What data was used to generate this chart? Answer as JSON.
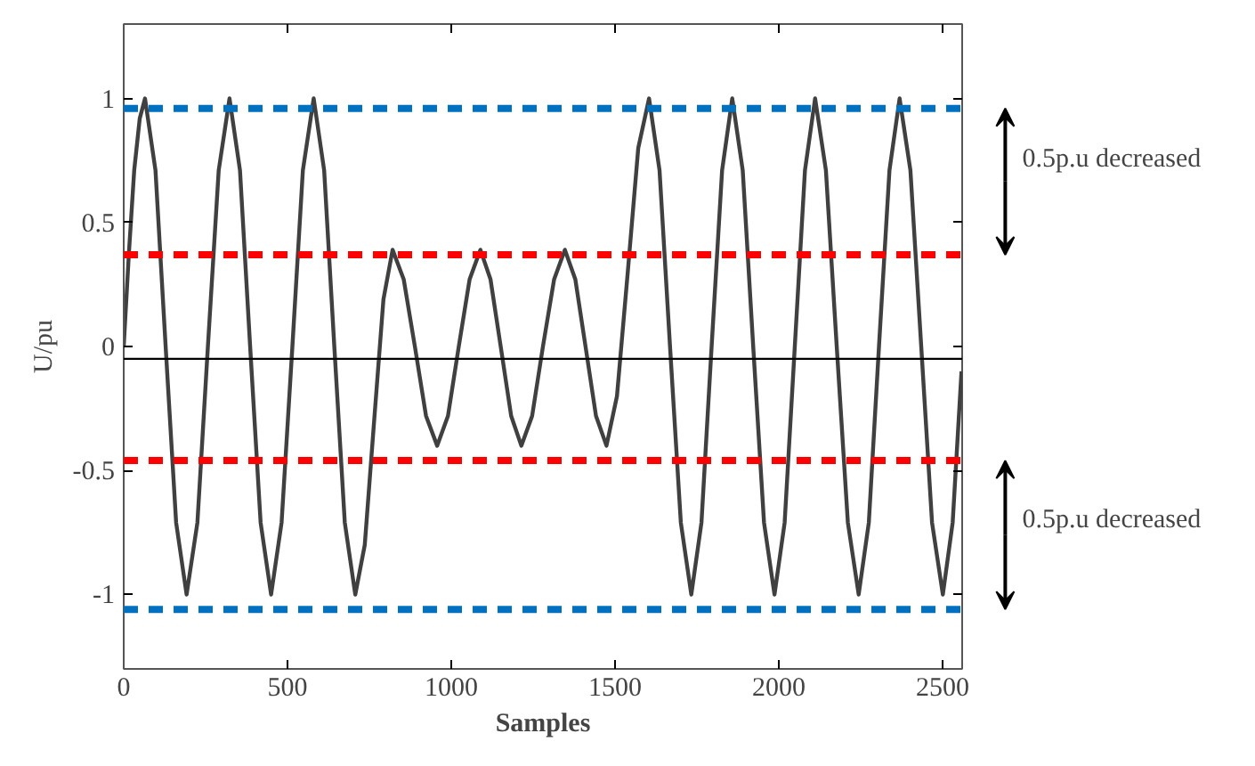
{
  "chart_data": {
    "type": "line",
    "xlabel": "Samples",
    "ylabel": "U/pu",
    "xlim": [
      0,
      2560
    ],
    "ylim": [
      -1.3,
      1.3
    ],
    "xticks": [
      0,
      500,
      1000,
      1500,
      2000,
      2500
    ],
    "yticks": [
      -1,
      -0.5,
      0,
      0.5,
      1
    ],
    "grid": false,
    "marker": "none",
    "line_style": "solid",
    "series": [
      {
        "color": "#404040",
        "x": [
          0,
          16,
          32,
          49,
          65,
          97,
          128,
          160,
          192,
          225,
          257,
          290,
          323,
          355,
          386,
          418,
          450,
          482,
          515,
          547,
          580,
          612,
          643,
          675,
          707,
          736,
          764,
          793,
          821,
          855,
          889,
          923,
          957,
          990,
          1023,
          1056,
          1089,
          1120,
          1151,
          1183,
          1214,
          1247,
          1280,
          1314,
          1347,
          1379,
          1410,
          1442,
          1474,
          1506,
          1539,
          1571,
          1604,
          1636,
          1668,
          1701,
          1733,
          1764,
          1795,
          1827,
          1858,
          1890,
          1922,
          1955,
          1987,
          2018,
          2049,
          2080,
          2111,
          2144,
          2177,
          2211,
          2244,
          2275,
          2306,
          2338,
          2369,
          2402,
          2435,
          2468,
          2501,
          2531,
          2558
        ],
        "values": [
          0,
          0.38,
          0.71,
          0.92,
          1,
          0.71,
          0,
          -0.71,
          -1,
          -0.71,
          0,
          0.71,
          1,
          0.71,
          0,
          -0.71,
          -1,
          -0.71,
          0,
          0.71,
          1,
          0.71,
          0,
          -0.71,
          -1,
          -0.8,
          -0.31,
          0.19,
          0.39,
          0.27,
          0,
          -0.28,
          -0.4,
          -0.28,
          0,
          0.27,
          0.39,
          0.27,
          0,
          -0.28,
          -0.4,
          -0.28,
          0,
          0.27,
          0.39,
          0.27,
          0,
          -0.28,
          -0.4,
          -0.2,
          0.3,
          0.8,
          1,
          0.71,
          0,
          -0.71,
          -1,
          -0.71,
          0,
          0.71,
          1,
          0.71,
          0,
          -0.71,
          -1,
          -0.71,
          0,
          0.71,
          1,
          0.71,
          0,
          -0.71,
          -1,
          -0.71,
          0,
          0.71,
          1,
          0.71,
          0,
          -0.71,
          -1,
          -0.71,
          -0.1
        ]
      }
    ],
    "ref_lines": [
      {
        "axis": "y",
        "value": 0.96,
        "color": "#0070c0",
        "line_style": "dashed"
      },
      {
        "axis": "y",
        "value": 0.37,
        "color": "#ff0000",
        "line_style": "dashed"
      },
      {
        "axis": "y",
        "value": -0.05,
        "color": "#000000",
        "line_style": "solid"
      },
      {
        "axis": "y",
        "value": -0.46,
        "color": "#ff0000",
        "line_style": "dashed"
      },
      {
        "axis": "y",
        "value": -1.06,
        "color": "#0070c0",
        "line_style": "dashed"
      }
    ],
    "annotations": [
      "0.5p.u decreased",
      "0.5p.u decreased"
    ]
  }
}
